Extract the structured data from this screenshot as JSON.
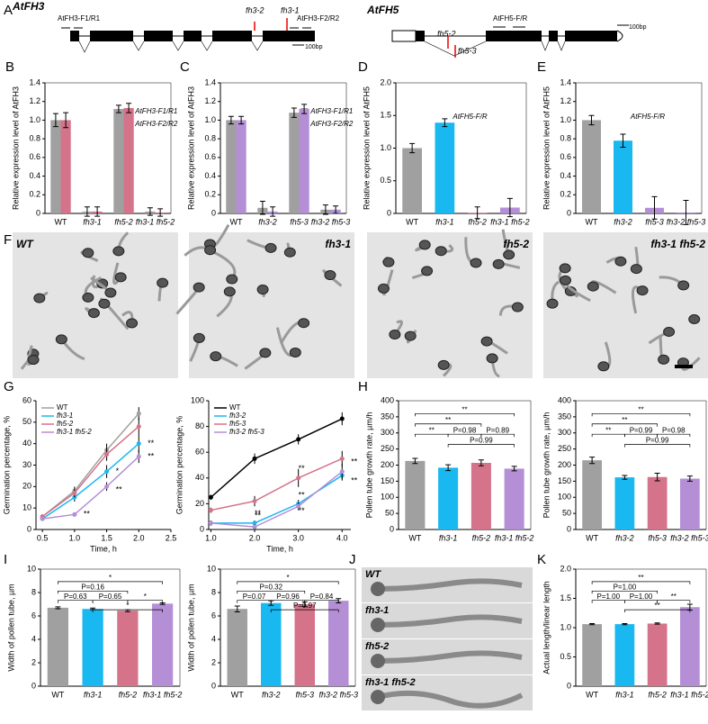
{
  "diagram": {
    "panel": "A",
    "genes": [
      {
        "name": "AtFH3",
        "labels": [
          "AtFH3-F1/R1",
          "fh3-2",
          "fh3-1",
          "AtFH3-F2/R2",
          "100bp"
        ]
      },
      {
        "name": "AtFH5",
        "labels": [
          "fh5-2",
          "fh5-3",
          "AtFH5-F/R",
          "100bp"
        ]
      }
    ]
  },
  "images": {
    "F": {
      "panel": "F",
      "labels": [
        "WT",
        "fh3-1",
        "fh5-2",
        "fh3-1 fh5-2"
      ]
    },
    "J": {
      "panel": "J",
      "labels": [
        "WT",
        "fh3-1",
        "fh5-2",
        "fh3-1 fh5-2"
      ]
    }
  },
  "chart_data": [
    {
      "panel": "B",
      "type": "bar",
      "ylabel": "Relative expression level of AtFH3",
      "categories": [
        "WT",
        "fh3-1",
        "fh5-2",
        "fh3-1 fh5-2"
      ],
      "series": [
        {
          "name": "AtFH3-F1/R1",
          "color": "#a0a0a0",
          "values": [
            1.0,
            0.02,
            1.12,
            0.02
          ],
          "errors": [
            0.07,
            0.05,
            0.04,
            0.04
          ]
        },
        {
          "name": "AtFH3-F2/R2",
          "color": "#d4738a",
          "values": [
            1.0,
            0.02,
            1.13,
            0.01
          ],
          "errors": [
            0.08,
            0.05,
            0.05,
            0.04
          ]
        }
      ],
      "ylim": [
        0,
        1.4
      ],
      "yticks": [
        0,
        0.2,
        0.4,
        0.6,
        0.8,
        {
          "value": 1,
          "label": "1.0"
        },
        1.2,
        1.4
      ]
    },
    {
      "panel": "C",
      "type": "bar",
      "ylabel": "Relative expression level of AtFH3",
      "categories": [
        "WT",
        "fh3-2",
        "fh5-3",
        "fh3-2 fh5-3"
      ],
      "series": [
        {
          "name": "AtFH3-F1/R1",
          "color": "#a0a0a0",
          "values": [
            1.0,
            0.06,
            1.08,
            0.04
          ],
          "errors": [
            0.04,
            0.07,
            0.05,
            0.05
          ]
        },
        {
          "name": "AtFH3-F2/R2",
          "color": "#b48fd6",
          "values": [
            1.0,
            0.02,
            1.12,
            0.04
          ],
          "errors": [
            0.04,
            0.05,
            0.05,
            0.04
          ]
        }
      ],
      "ylim": [
        0,
        1.4
      ],
      "yticks": [
        0,
        0.2,
        0.4,
        0.6,
        0.8,
        {
          "value": 1,
          "label": "1.0"
        },
        1.2,
        1.4
      ]
    },
    {
      "panel": "D",
      "type": "bar",
      "ylabel": "Relative expression level of AtFH5",
      "note": "AtFH5-F/R",
      "categories": [
        "WT",
        "fh3-1",
        "fh5-2",
        "fh3-1 fh5-2"
      ],
      "values": [
        1.0,
        1.39,
        0.01,
        0.09
      ],
      "errors": [
        0.07,
        0.06,
        0.09,
        0.14
      ],
      "colors": [
        "#a0a0a0",
        "#1ab8f0",
        "#d4738a",
        "#b48fd6"
      ],
      "ylim": [
        0,
        2
      ],
      "yticks": [
        0,
        0.5,
        {
          "value": 1,
          "label": "1.0"
        },
        1.5,
        {
          "value": 2,
          "label": "2.0"
        }
      ]
    },
    {
      "panel": "E",
      "type": "bar",
      "ylabel": "Relative expression level of AtFH5",
      "note": "AtFH5-F/R",
      "categories": [
        "WT",
        "fh3-2",
        "fh5-3",
        "fh3-2 fh5-3"
      ],
      "values": [
        1.0,
        0.78,
        0.06,
        0.01
      ],
      "errors": [
        0.05,
        0.07,
        0.12,
        0.13
      ],
      "colors": [
        "#a0a0a0",
        "#1ab8f0",
        "#b48fd6",
        "#b48fd6"
      ],
      "ylim": [
        0,
        1.4
      ],
      "yticks": [
        0,
        0.2,
        0.4,
        0.6,
        0.8,
        {
          "value": 1,
          "label": "1.0"
        },
        1.2,
        1.4
      ]
    },
    {
      "panel": "G",
      "type": "line",
      "xlabel": "Time, h",
      "ylabel": "Germination percentage, %",
      "x": [
        0.5,
        1,
        1.5,
        2
      ],
      "series": [
        {
          "name": "WT",
          "color": "#a0a0a0",
          "values": [
            6,
            18,
            37,
            54
          ],
          "errors": [
            1,
            2,
            3,
            3
          ]
        },
        {
          "name": "fh3-1",
          "color": "#1ab8f0",
          "values": [
            5,
            15,
            27,
            40
          ],
          "errors": [
            1,
            2,
            3,
            4
          ]
        },
        {
          "name": "fh5-2",
          "color": "#d4738a",
          "values": [
            6,
            17,
            35,
            48
          ],
          "errors": [
            1,
            2,
            3,
            4
          ]
        },
        {
          "name": "fh3-1 fh5-2",
          "color": "#b48fd6",
          "values": [
            5,
            7,
            20,
            34
          ],
          "errors": [
            1,
            1,
            2,
            3
          ]
        }
      ],
      "annotations": [
        "*",
        "**",
        "**",
        "**",
        "**"
      ],
      "xlim": [
        0.4,
        2.5
      ],
      "xticks": [
        0.5,
        {
          "value": 1,
          "label": "1.0"
        },
        1.5,
        {
          "value": 2,
          "label": "2.0"
        },
        2.5
      ],
      "ylim": [
        0,
        60
      ],
      "yticks": [
        0,
        10,
        20,
        30,
        40,
        50,
        60
      ]
    },
    {
      "type": "line",
      "xlabel": "Time, h",
      "ylabel": "Germination percentage, %",
      "x": [
        1,
        2,
        3,
        4
      ],
      "series": [
        {
          "name": "WT",
          "color": "#000000",
          "values": [
            25,
            55,
            70,
            86
          ],
          "errors": [
            2,
            4,
            4,
            5
          ]
        },
        {
          "name": "fh3-2",
          "color": "#1ab8f0",
          "values": [
            5,
            5,
            20,
            42
          ],
          "errors": [
            2,
            2,
            3,
            4
          ]
        },
        {
          "name": "fh5-3",
          "color": "#d4738a",
          "values": [
            15,
            22,
            40,
            55
          ],
          "errors": [
            2,
            4,
            7,
            6
          ]
        },
        {
          "name": "fh3-2 fh5-3",
          "color": "#b48fd6",
          "values": [
            5,
            2,
            18,
            45
          ],
          "errors": [
            2,
            2,
            3,
            6
          ]
        }
      ],
      "annotations": [
        "**",
        "**",
        "**",
        "**",
        "**",
        "**",
        "**"
      ],
      "xlim": [
        0.95,
        4.2
      ],
      "xticks": [
        {
          "value": 1,
          "label": "1.0"
        },
        {
          "value": 2,
          "label": "2.0"
        },
        {
          "value": 3,
          "label": "3.0"
        },
        {
          "value": 4,
          "label": "4.0"
        }
      ],
      "ylim": [
        0,
        100
      ],
      "yticks": [
        0,
        20,
        40,
        60,
        80,
        100
      ]
    },
    {
      "panel": "H",
      "type": "bar",
      "ylabel": "Pollen tube growth rate, µm/h",
      "categories": [
        "WT",
        "fh3-1",
        "fh5-2",
        "fh3-1 fh5-2"
      ],
      "values": [
        213,
        192,
        207,
        189
      ],
      "errors": [
        8,
        9,
        9,
        7
      ],
      "colors": [
        "#a0a0a0",
        "#1ab8f0",
        "#d4738a",
        "#b48fd6"
      ],
      "annotations": [
        "**",
        "**",
        "**",
        "P=0.98",
        "P=0.89",
        "P=0.99"
      ],
      "ylim": [
        0,
        400
      ],
      "yticks": [
        0,
        50,
        100,
        150,
        200,
        250,
        300,
        350,
        400
      ]
    },
    {
      "type": "bar",
      "ylabel": "Pollen tube growth rate, µm/h",
      "categories": [
        "WT",
        "fh3-2",
        "fh5-3",
        "fh3-2 fh5-3"
      ],
      "values": [
        215,
        162,
        163,
        158
      ],
      "errors": [
        10,
        6,
        12,
        8
      ],
      "colors": [
        "#a0a0a0",
        "#1ab8f0",
        "#d4738a",
        "#b48fd6"
      ],
      "annotations": [
        "**",
        "**",
        "**",
        "P=0.99",
        "P=0.98",
        "P=0.99"
      ],
      "ylim": [
        0,
        400
      ],
      "yticks": [
        0,
        50,
        100,
        150,
        200,
        250,
        300,
        350,
        400
      ]
    },
    {
      "panel": "I",
      "type": "bar",
      "ylabel": "Width of pollen tube, µm",
      "categories": [
        "WT",
        "fh3-1",
        "fh5-2",
        "fh3-1 fh5-2"
      ],
      "values": [
        6.7,
        6.6,
        6.45,
        7.05
      ],
      "errors": [
        0.08,
        0.07,
        0.08,
        0.07
      ],
      "colors": [
        "#a0a0a0",
        "#1ab8f0",
        "#d4738a",
        "#b48fd6"
      ],
      "annotations": [
        "*",
        "P=0.16",
        "P=0.63",
        "P=0.65",
        "*",
        "*"
      ],
      "ylim": [
        0,
        10
      ],
      "yticks": [
        0,
        2,
        4,
        6,
        8,
        10
      ]
    },
    {
      "type": "bar",
      "ylabel": "Width of pollen tube, µm",
      "categories": [
        "WT",
        "fh3-2",
        "fh5-3",
        "fh3-2 fh5-3"
      ],
      "values": [
        6.6,
        7.1,
        7.0,
        7.3
      ],
      "errors": [
        0.25,
        0.2,
        0.2,
        0.18
      ],
      "colors": [
        "#a0a0a0",
        "#1ab8f0",
        "#d4738a",
        "#b48fd6"
      ],
      "annotations": [
        "*",
        "P=0.32",
        "P=0.07",
        "P=0.96",
        "P=0.84",
        "P=0.97"
      ],
      "ylim": [
        0,
        10
      ],
      "yticks": [
        0,
        2,
        4,
        6,
        8,
        10
      ]
    },
    {
      "panel": "K",
      "type": "bar",
      "ylabel": "Actual length/linear length",
      "categories": [
        "WT",
        "fh3-1",
        "fh5-2",
        "fh3-1 fh5-2"
      ],
      "values": [
        1.06,
        1.06,
        1.07,
        1.35
      ],
      "errors": [
        0.01,
        0.01,
        0.01,
        0.05
      ],
      "colors": [
        "#a0a0a0",
        "#1ab8f0",
        "#d4738a",
        "#b48fd6"
      ],
      "annotations": [
        "**",
        "P=1.00",
        "P=1.00",
        "P=1.00",
        "**",
        "**"
      ],
      "ylim": [
        0,
        2
      ],
      "yticks": [
        0,
        0.5,
        {
          "value": 1,
          "label": "1.0"
        },
        1.5,
        {
          "value": 2,
          "label": "2.0"
        }
      ]
    }
  ]
}
